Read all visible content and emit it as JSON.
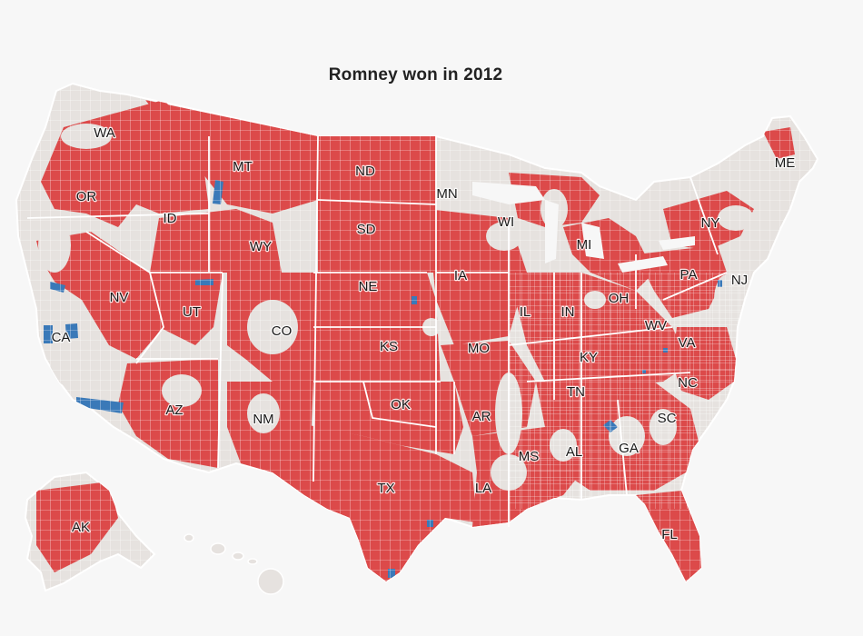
{
  "title": "Romney won in 2012",
  "colors": {
    "background": "#f7f7f7",
    "land_gray": "#e6e2df",
    "romney_red": "#dc4a4a",
    "obama_blue": "#3a79b8",
    "border_white": "#ffffff"
  },
  "state_labels": [
    {
      "id": "WA",
      "text": "WA"
    },
    {
      "id": "OR",
      "text": "OR"
    },
    {
      "id": "CA",
      "text": "CA"
    },
    {
      "id": "ID",
      "text": "ID"
    },
    {
      "id": "NV",
      "text": "NV"
    },
    {
      "id": "MT",
      "text": "MT"
    },
    {
      "id": "WY",
      "text": "WY"
    },
    {
      "id": "UT",
      "text": "UT"
    },
    {
      "id": "AZ",
      "text": "AZ"
    },
    {
      "id": "CO",
      "text": "CO"
    },
    {
      "id": "NM",
      "text": "NM"
    },
    {
      "id": "ND",
      "text": "ND"
    },
    {
      "id": "SD",
      "text": "SD"
    },
    {
      "id": "NE",
      "text": "NE"
    },
    {
      "id": "KS",
      "text": "KS"
    },
    {
      "id": "OK",
      "text": "OK"
    },
    {
      "id": "TX",
      "text": "TX"
    },
    {
      "id": "MN",
      "text": "MN"
    },
    {
      "id": "IA",
      "text": "IA"
    },
    {
      "id": "MO",
      "text": "MO"
    },
    {
      "id": "AR",
      "text": "AR"
    },
    {
      "id": "LA",
      "text": "LA"
    },
    {
      "id": "WI",
      "text": "WI"
    },
    {
      "id": "IL",
      "text": "IL"
    },
    {
      "id": "MI",
      "text": "MI"
    },
    {
      "id": "IN",
      "text": "IN"
    },
    {
      "id": "OH",
      "text": "OH"
    },
    {
      "id": "KY",
      "text": "KY"
    },
    {
      "id": "TN",
      "text": "TN"
    },
    {
      "id": "MS",
      "text": "MS"
    },
    {
      "id": "AL",
      "text": "AL"
    },
    {
      "id": "GA",
      "text": "GA"
    },
    {
      "id": "FL",
      "text": "FL"
    },
    {
      "id": "SC",
      "text": "SC"
    },
    {
      "id": "NC",
      "text": "NC"
    },
    {
      "id": "VA",
      "text": "VA"
    },
    {
      "id": "WV",
      "text": "WV"
    },
    {
      "id": "PA",
      "text": "PA"
    },
    {
      "id": "NY",
      "text": "NY"
    },
    {
      "id": "NJ",
      "text": "NJ"
    },
    {
      "id": "ME",
      "text": "ME"
    },
    {
      "id": "AK",
      "text": "AK"
    }
  ]
}
